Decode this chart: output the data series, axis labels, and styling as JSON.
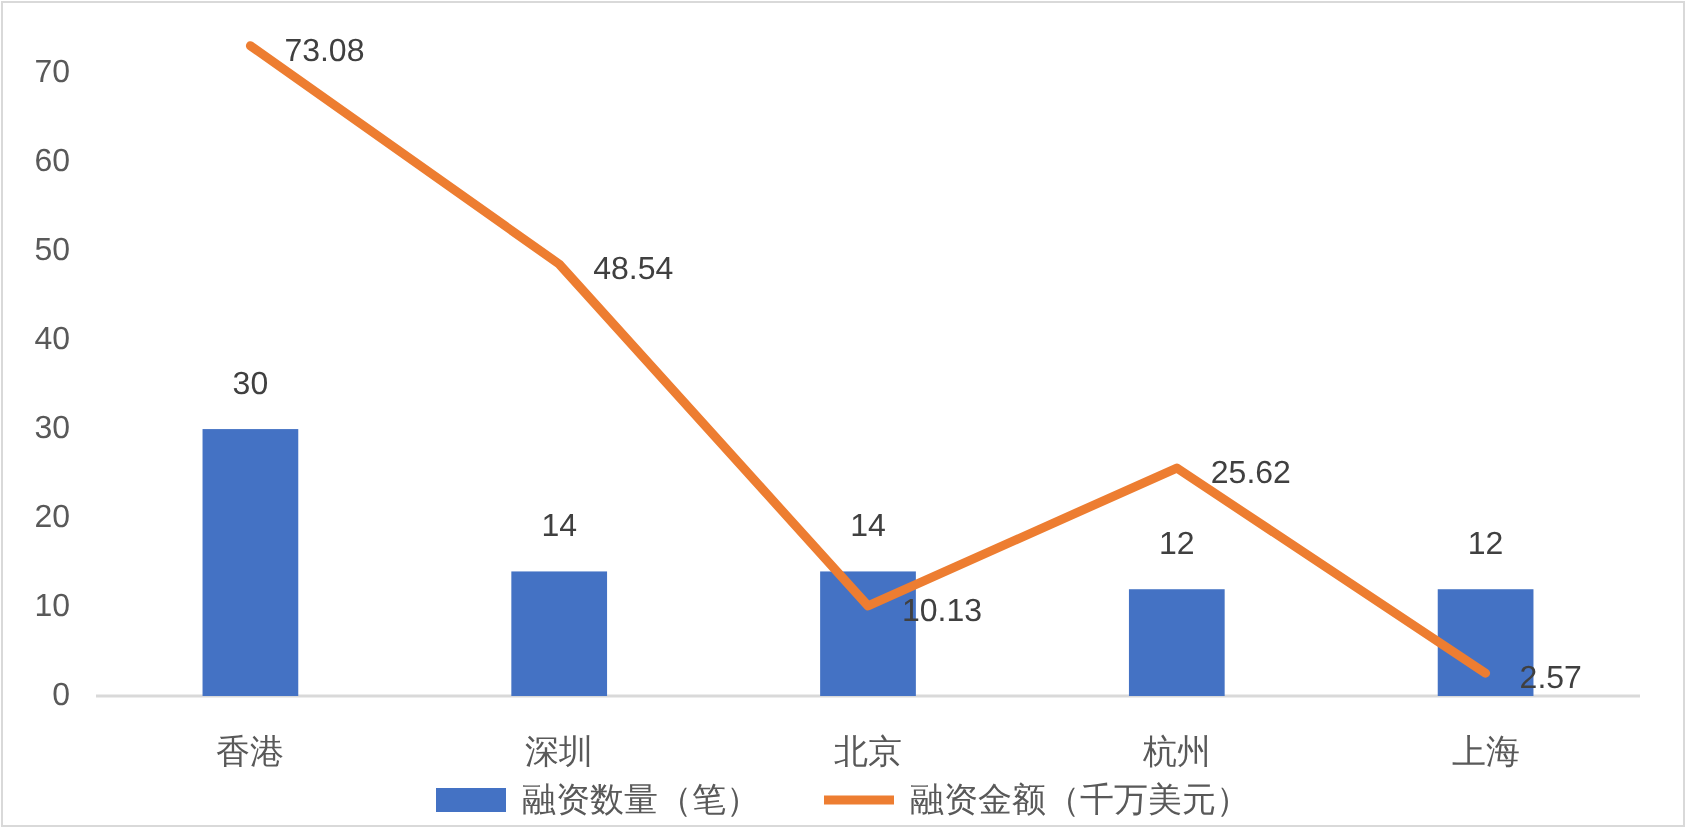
{
  "chart_data": {
    "type": "bar",
    "categories": [
      "香港",
      "深圳",
      "北京",
      "杭州",
      "上海"
    ],
    "series": [
      {
        "name": "融资数量（笔）",
        "color": "#4472c4",
        "values": [
          30,
          14,
          14,
          12,
          12
        ]
      },
      {
        "name": "融资金额（千万美元）",
        "type": "line",
        "color": "#ed7d31",
        "values": [
          73.08,
          48.54,
          10.13,
          25.62,
          2.57
        ]
      }
    ],
    "ylim": [
      0,
      78
    ],
    "yticks": [
      0,
      10,
      20,
      30,
      40,
      50,
      60,
      70
    ],
    "grid": false,
    "legend": "bottom",
    "data_labels": true
  }
}
